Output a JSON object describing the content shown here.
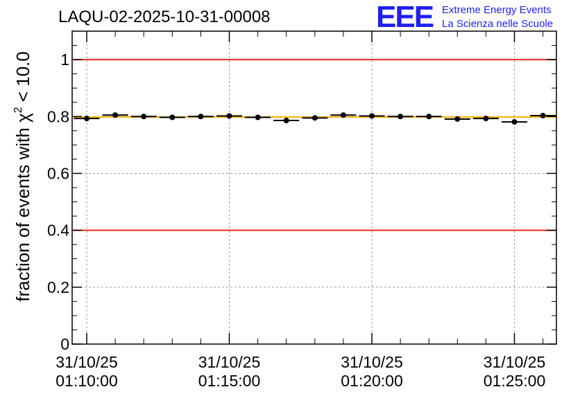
{
  "chart_data": {
    "type": "scatter",
    "title": "LAQU-02-2025-10-31-00008",
    "ylabel_main": "fraction of events with χ",
    "ylabel_sup": "2",
    "ylabel_tail": " < 10.0",
    "xlabel": "",
    "x_unit": "minutes after 31/10/25 01:10:00",
    "xlim": [
      -0.1,
      16.5
    ],
    "ylim": [
      0,
      1.1
    ],
    "yticks": [
      0,
      0.2,
      0.4,
      0.6,
      0.8,
      1
    ],
    "ytick_labels": [
      "0",
      "0.2",
      "0.4",
      "0.6",
      "0.8",
      "1"
    ],
    "xticks_major": [
      {
        "x": 0,
        "date": "31/10/25",
        "time": "01:10:00"
      },
      {
        "x": 5,
        "date": "31/10/25",
        "time": "01:15:00"
      },
      {
        "x": 10,
        "date": "31/10/25",
        "time": "01:20:00"
      },
      {
        "x": 15,
        "date": "31/10/25",
        "time": "01:25:00"
      }
    ],
    "xticks_minor": [
      1,
      2,
      3,
      4,
      6,
      7,
      8,
      9,
      11,
      12,
      13,
      14,
      16
    ],
    "reference_lines": [
      {
        "name": "upper-limit",
        "y": 1.0,
        "color": "#e8261a"
      },
      {
        "name": "lower-limit",
        "y": 0.4,
        "color": "#e8261a"
      },
      {
        "name": "mean",
        "y": 0.798,
        "color": "#ffb400"
      }
    ],
    "series": [
      {
        "name": "fraction",
        "color": "#000000",
        "x": [
          0,
          1,
          2,
          3,
          4,
          5,
          6,
          7,
          8,
          9,
          10,
          11,
          12,
          13,
          14,
          15,
          16
        ],
        "y": [
          0.793,
          0.805,
          0.8,
          0.797,
          0.8,
          0.802,
          0.797,
          0.786,
          0.795,
          0.805,
          0.802,
          0.8,
          0.8,
          0.791,
          0.793,
          0.781,
          0.803
        ],
        "xerr": 0.45
      }
    ],
    "grid": true
  },
  "logo": {
    "mark": "EEE",
    "line1": "Extreme Energy Events",
    "line2": "La Scienza nelle Scuole",
    "color": "#1f1ff0"
  }
}
